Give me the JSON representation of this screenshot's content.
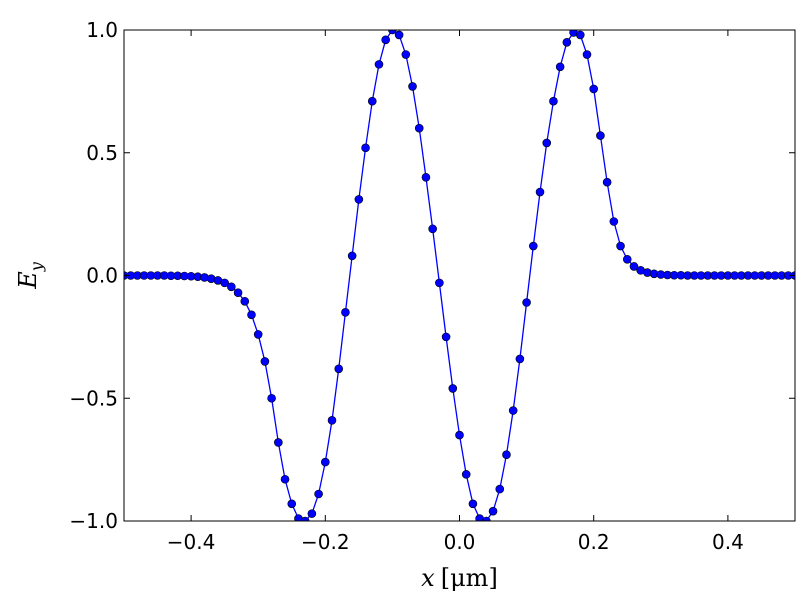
{
  "chart_data": {
    "type": "line",
    "title": "",
    "xlabel_var": "x",
    "xlabel_unit": "[μm]",
    "ylabel_base": "E",
    "ylabel_sub": "y",
    "xlim": [
      -0.5,
      0.5
    ],
    "ylim": [
      -1.0,
      1.0
    ],
    "grid": false,
    "legend": "none",
    "x_ticks": [
      -0.4,
      -0.2,
      0.0,
      0.2,
      0.4
    ],
    "x_tick_labels": [
      "−0.4",
      "−0.2",
      "0.0",
      "0.2",
      "0.4"
    ],
    "y_ticks": [
      -1.0,
      -0.5,
      0.0,
      0.5,
      1.0
    ],
    "y_tick_labels": [
      "−1.0",
      "−0.5",
      "0.0",
      "0.5",
      "1.0"
    ],
    "series": [
      {
        "color": "#0000ff",
        "marker": "circle",
        "x": [
          -0.5,
          -0.49,
          -0.48,
          -0.47,
          -0.46,
          -0.45,
          -0.44,
          -0.43,
          -0.42,
          -0.41,
          -0.4,
          -0.39,
          -0.38,
          -0.37,
          -0.36,
          -0.35,
          -0.34,
          -0.33,
          -0.32,
          -0.31,
          -0.3,
          -0.29,
          -0.28,
          -0.27,
          -0.26,
          -0.25,
          -0.24,
          -0.23,
          -0.22,
          -0.21,
          -0.2,
          -0.19,
          -0.18,
          -0.17,
          -0.16,
          -0.15,
          -0.14,
          -0.13,
          -0.12,
          -0.11,
          -0.1,
          -0.09,
          -0.08,
          -0.07,
          -0.06,
          -0.05,
          -0.04,
          -0.03,
          -0.02,
          -0.01,
          0.0,
          0.01,
          0.02,
          0.03,
          0.04,
          0.05,
          0.06,
          0.07,
          0.08,
          0.09,
          0.1,
          0.11,
          0.12,
          0.13,
          0.14,
          0.15,
          0.16,
          0.17,
          0.18,
          0.19,
          0.2,
          0.21,
          0.22,
          0.23,
          0.24,
          0.25,
          0.26,
          0.27,
          0.28,
          0.29,
          0.3,
          0.31,
          0.32,
          0.33,
          0.34,
          0.35,
          0.36,
          0.37,
          0.38,
          0.39,
          0.4,
          0.41,
          0.42,
          0.43,
          0.44,
          0.45,
          0.46,
          0.47,
          0.48,
          0.49,
          0.5
        ],
        "y": [
          0.0,
          0.0,
          0.0,
          0.0,
          0.0,
          0.0,
          0.0,
          -0.001,
          -0.001,
          -0.002,
          -0.003,
          -0.005,
          -0.008,
          -0.013,
          -0.02,
          -0.03,
          -0.046,
          -0.07,
          -0.105,
          -0.16,
          -0.24,
          -0.35,
          -0.5,
          -0.68,
          -0.83,
          -0.93,
          -0.99,
          -1.0,
          -0.97,
          -0.89,
          -0.76,
          -0.59,
          -0.38,
          -0.15,
          0.08,
          0.31,
          0.52,
          0.71,
          0.86,
          0.96,
          1.0,
          0.98,
          0.9,
          0.77,
          0.6,
          0.4,
          0.19,
          -0.03,
          -0.25,
          -0.46,
          -0.65,
          -0.81,
          -0.93,
          -0.99,
          -1.0,
          -0.96,
          -0.87,
          -0.73,
          -0.55,
          -0.34,
          -0.11,
          0.12,
          0.34,
          0.54,
          0.71,
          0.85,
          0.95,
          0.99,
          0.98,
          0.9,
          0.76,
          0.57,
          0.38,
          0.22,
          0.12,
          0.066,
          0.037,
          0.021,
          0.012,
          0.007,
          0.004,
          0.002,
          0.001,
          0.001,
          0.0,
          0.0,
          0.0,
          0.0,
          0.0,
          0.0,
          0.0,
          0.0,
          0.0,
          0.0,
          0.0,
          0.0,
          0.0,
          0.0,
          0.0,
          0.0,
          0.0
        ]
      }
    ]
  }
}
